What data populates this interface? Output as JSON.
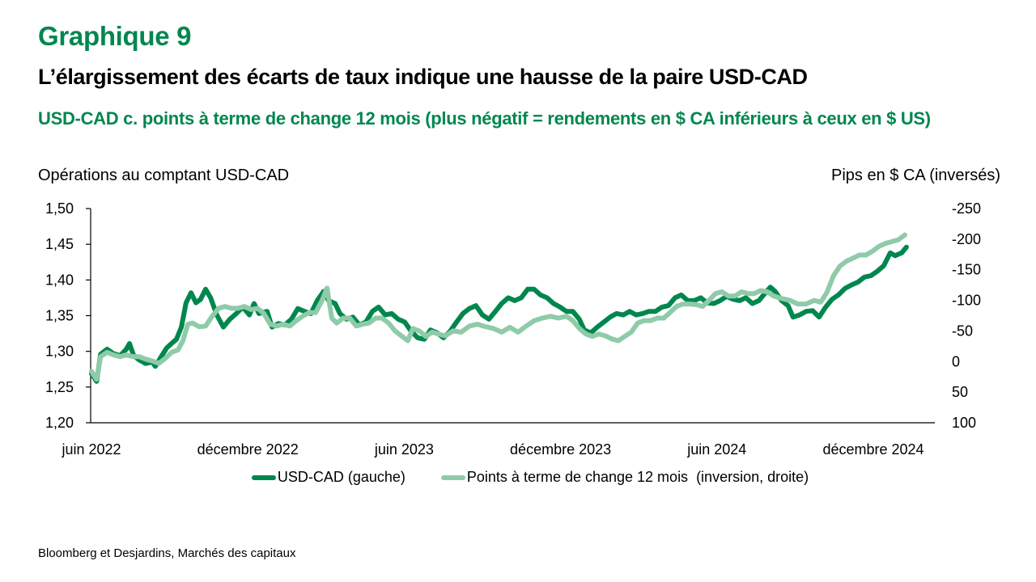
{
  "header": {
    "title": "Graphique 9",
    "subtitle": "L’élargissement des écarts de taux indique une hausse de la paire USD-CAD",
    "description": "USD-CAD c. points à terme de change 12 mois (plus négatif = rendements en $ CA inférieurs à ceux en $ US)"
  },
  "colors": {
    "accent": "#00874e",
    "series_dark": "#00874e",
    "series_light": "#8fcba9"
  },
  "source": "Bloomberg et Desjardins, Marchés des capitaux",
  "chart_data": {
    "type": "line",
    "title": "USD-CAD c. points à terme de change 12 mois",
    "xlabel": "",
    "ylabel_left": "Opérations au comptant USD-CAD",
    "ylabel_right": "Pips en $ CA (inversés)",
    "x_unit": "months since June 2022",
    "x_range": [
      0,
      31.3
    ],
    "x_ticks": [
      {
        "label": "juin 2022",
        "x": 0
      },
      {
        "label": "décembre 2022",
        "x": 6
      },
      {
        "label": "juin 2023",
        "x": 12
      },
      {
        "label": "décembre 2023",
        "x": 18
      },
      {
        "label": "juin 2024",
        "x": 24
      },
      {
        "label": "décembre 2024",
        "x": 30
      }
    ],
    "y_left": {
      "range": [
        1.2,
        1.5
      ],
      "ticks": [
        "1,20",
        "1,25",
        "1,30",
        "1,35",
        "1,40",
        "1,45",
        "1,50"
      ],
      "tick_values": [
        1.2,
        1.25,
        1.3,
        1.35,
        1.4,
        1.45,
        1.5
      ]
    },
    "y_right": {
      "range": [
        100,
        -250
      ],
      "inverted": true,
      "ticks": [
        "100",
        "50",
        "0",
        "-50",
        "-100",
        "-150",
        "-200",
        "-250"
      ],
      "tick_values": [
        100,
        50,
        0,
        -50,
        -100,
        -150,
        -200,
        -250
      ]
    },
    "grid": false,
    "legend_position": "bottom",
    "series": [
      {
        "name": "USD-CAD (gauche)",
        "axis": "left",
        "color": "#00874e",
        "points": [
          [
            0.0,
            1.269
          ],
          [
            0.2,
            1.258
          ],
          [
            0.35,
            1.296
          ],
          [
            0.6,
            1.303
          ],
          [
            0.84,
            1.297
          ],
          [
            1.1,
            1.294
          ],
          [
            1.34,
            1.303
          ],
          [
            1.46,
            1.311
          ],
          [
            1.62,
            1.294
          ],
          [
            1.83,
            1.288
          ],
          [
            2.08,
            1.283
          ],
          [
            2.33,
            1.285
          ],
          [
            2.45,
            1.279
          ],
          [
            2.7,
            1.294
          ],
          [
            2.89,
            1.305
          ],
          [
            3.07,
            1.311
          ],
          [
            3.26,
            1.317
          ],
          [
            3.45,
            1.334
          ],
          [
            3.63,
            1.368
          ],
          [
            3.82,
            1.382
          ],
          [
            4.01,
            1.368
          ],
          [
            4.19,
            1.373
          ],
          [
            4.38,
            1.387
          ],
          [
            4.57,
            1.375
          ],
          [
            4.81,
            1.351
          ],
          [
            5.06,
            1.334
          ],
          [
            5.31,
            1.345
          ],
          [
            5.56,
            1.353
          ],
          [
            5.81,
            1.362
          ],
          [
            6.06,
            1.351
          ],
          [
            6.24,
            1.367
          ],
          [
            6.43,
            1.353
          ],
          [
            6.74,
            1.356
          ],
          [
            6.93,
            1.334
          ],
          [
            7.17,
            1.339
          ],
          [
            7.42,
            1.337
          ],
          [
            7.67,
            1.345
          ],
          [
            7.92,
            1.36
          ],
          [
            8.17,
            1.356
          ],
          [
            8.42,
            1.353
          ],
          [
            8.66,
            1.371
          ],
          [
            8.91,
            1.384
          ],
          [
            9.1,
            1.371
          ],
          [
            9.35,
            1.367
          ],
          [
            9.53,
            1.353
          ],
          [
            9.78,
            1.345
          ],
          [
            10.03,
            1.348
          ],
          [
            10.28,
            1.337
          ],
          [
            10.53,
            1.341
          ],
          [
            10.78,
            1.356
          ],
          [
            11.02,
            1.362
          ],
          [
            11.27,
            1.351
          ],
          [
            11.52,
            1.353
          ],
          [
            11.77,
            1.345
          ],
          [
            12.02,
            1.341
          ],
          [
            12.27,
            1.328
          ],
          [
            12.52,
            1.319
          ],
          [
            12.77,
            1.317
          ],
          [
            13.01,
            1.33
          ],
          [
            13.26,
            1.326
          ],
          [
            13.51,
            1.319
          ],
          [
            13.76,
            1.328
          ],
          [
            14.01,
            1.341
          ],
          [
            14.25,
            1.353
          ],
          [
            14.5,
            1.36
          ],
          [
            14.75,
            1.364
          ],
          [
            15.0,
            1.351
          ],
          [
            15.25,
            1.345
          ],
          [
            15.5,
            1.356
          ],
          [
            15.74,
            1.367
          ],
          [
            15.99,
            1.375
          ],
          [
            16.24,
            1.371
          ],
          [
            16.49,
            1.375
          ],
          [
            16.74,
            1.387
          ],
          [
            16.98,
            1.387
          ],
          [
            17.23,
            1.379
          ],
          [
            17.48,
            1.375
          ],
          [
            17.73,
            1.367
          ],
          [
            17.98,
            1.362
          ],
          [
            18.22,
            1.356
          ],
          [
            18.47,
            1.356
          ],
          [
            18.72,
            1.345
          ],
          [
            18.91,
            1.33
          ],
          [
            19.16,
            1.326
          ],
          [
            19.41,
            1.334
          ],
          [
            19.66,
            1.341
          ],
          [
            19.9,
            1.348
          ],
          [
            20.15,
            1.353
          ],
          [
            20.4,
            1.351
          ],
          [
            20.65,
            1.356
          ],
          [
            20.9,
            1.351
          ],
          [
            21.15,
            1.353
          ],
          [
            21.39,
            1.356
          ],
          [
            21.64,
            1.356
          ],
          [
            21.89,
            1.362
          ],
          [
            22.14,
            1.364
          ],
          [
            22.39,
            1.375
          ],
          [
            22.63,
            1.379
          ],
          [
            22.88,
            1.371
          ],
          [
            23.13,
            1.371
          ],
          [
            23.38,
            1.375
          ],
          [
            23.63,
            1.368
          ],
          [
            23.88,
            1.367
          ],
          [
            24.12,
            1.371
          ],
          [
            24.37,
            1.377
          ],
          [
            24.62,
            1.373
          ],
          [
            24.87,
            1.371
          ],
          [
            25.11,
            1.375
          ],
          [
            25.36,
            1.367
          ],
          [
            25.61,
            1.371
          ],
          [
            25.86,
            1.382
          ],
          [
            26.05,
            1.39
          ],
          [
            26.23,
            1.384
          ],
          [
            26.48,
            1.371
          ],
          [
            26.73,
            1.364
          ],
          [
            26.92,
            1.348
          ],
          [
            27.17,
            1.351
          ],
          [
            27.42,
            1.356
          ],
          [
            27.67,
            1.357
          ],
          [
            27.92,
            1.348
          ],
          [
            28.17,
            1.362
          ],
          [
            28.42,
            1.373
          ],
          [
            28.66,
            1.379
          ],
          [
            28.91,
            1.388
          ],
          [
            29.16,
            1.393
          ],
          [
            29.41,
            1.397
          ],
          [
            29.66,
            1.404
          ],
          [
            29.91,
            1.406
          ],
          [
            30.15,
            1.412
          ],
          [
            30.4,
            1.42
          ],
          [
            30.65,
            1.438
          ],
          [
            30.84,
            1.434
          ],
          [
            31.09,
            1.438
          ],
          [
            31.27,
            1.446
          ]
        ]
      },
      {
        "name": "Points à terme de change 12 mois  (inversion, droite)",
        "axis": "right",
        "color": "#8fcba9",
        "points": [
          [
            0.0,
            16
          ],
          [
            0.2,
            29
          ],
          [
            0.35,
            -8
          ],
          [
            0.6,
            -15
          ],
          [
            0.84,
            -11
          ],
          [
            1.1,
            -8
          ],
          [
            1.34,
            -11
          ],
          [
            1.59,
            -8
          ],
          [
            1.83,
            -8
          ],
          [
            2.08,
            -4
          ],
          [
            2.33,
            -1
          ],
          [
            2.58,
            3
          ],
          [
            2.83,
            -5
          ],
          [
            3.07,
            -15
          ],
          [
            3.32,
            -19
          ],
          [
            3.51,
            -34
          ],
          [
            3.7,
            -61
          ],
          [
            3.88,
            -63
          ],
          [
            4.13,
            -57
          ],
          [
            4.38,
            -58
          ],
          [
            4.63,
            -74
          ],
          [
            4.88,
            -87
          ],
          [
            5.12,
            -90
          ],
          [
            5.37,
            -87
          ],
          [
            5.62,
            -87
          ],
          [
            5.87,
            -90
          ],
          [
            6.12,
            -85
          ],
          [
            6.37,
            -87
          ],
          [
            6.61,
            -79
          ],
          [
            6.86,
            -61
          ],
          [
            7.11,
            -58
          ],
          [
            7.36,
            -61
          ],
          [
            7.61,
            -58
          ],
          [
            7.86,
            -67
          ],
          [
            8.1,
            -74
          ],
          [
            8.35,
            -80
          ],
          [
            8.6,
            -80
          ],
          [
            8.85,
            -100
          ],
          [
            9.04,
            -120
          ],
          [
            9.22,
            -71
          ],
          [
            9.41,
            -63
          ],
          [
            9.66,
            -71
          ],
          [
            9.91,
            -71
          ],
          [
            10.16,
            -58
          ],
          [
            10.4,
            -61
          ],
          [
            10.65,
            -63
          ],
          [
            10.9,
            -71
          ],
          [
            11.15,
            -71
          ],
          [
            11.4,
            -63
          ],
          [
            11.65,
            -50
          ],
          [
            11.89,
            -42
          ],
          [
            12.14,
            -34
          ],
          [
            12.33,
            -54
          ],
          [
            12.58,
            -50
          ],
          [
            12.83,
            -41
          ],
          [
            13.07,
            -48
          ],
          [
            13.32,
            -45
          ],
          [
            13.57,
            -42
          ],
          [
            13.88,
            -50
          ],
          [
            14.19,
            -48
          ],
          [
            14.5,
            -58
          ],
          [
            14.81,
            -61
          ],
          [
            15.12,
            -57
          ],
          [
            15.43,
            -54
          ],
          [
            15.74,
            -48
          ],
          [
            16.06,
            -56
          ],
          [
            16.37,
            -48
          ],
          [
            16.68,
            -58
          ],
          [
            16.99,
            -67
          ],
          [
            17.3,
            -71
          ],
          [
            17.61,
            -74
          ],
          [
            17.92,
            -71
          ],
          [
            18.22,
            -74
          ],
          [
            18.47,
            -67
          ],
          [
            18.72,
            -54
          ],
          [
            18.97,
            -45
          ],
          [
            19.22,
            -41
          ],
          [
            19.47,
            -45
          ],
          [
            19.72,
            -42
          ],
          [
            19.97,
            -37
          ],
          [
            20.22,
            -34
          ],
          [
            20.46,
            -41
          ],
          [
            20.71,
            -48
          ],
          [
            20.96,
            -63
          ],
          [
            21.21,
            -67
          ],
          [
            21.46,
            -67
          ],
          [
            21.71,
            -71
          ],
          [
            21.96,
            -71
          ],
          [
            22.2,
            -80
          ],
          [
            22.45,
            -90
          ],
          [
            22.7,
            -94
          ],
          [
            22.95,
            -94
          ],
          [
            23.2,
            -93
          ],
          [
            23.45,
            -90
          ],
          [
            23.7,
            -100
          ],
          [
            23.94,
            -111
          ],
          [
            24.19,
            -114
          ],
          [
            24.44,
            -107
          ],
          [
            24.69,
            -107
          ],
          [
            24.94,
            -114
          ],
          [
            25.19,
            -111
          ],
          [
            25.43,
            -111
          ],
          [
            25.68,
            -116
          ],
          [
            25.93,
            -114
          ],
          [
            26.18,
            -107
          ],
          [
            26.49,
            -103
          ],
          [
            26.8,
            -100
          ],
          [
            27.11,
            -94
          ],
          [
            27.42,
            -94
          ],
          [
            27.73,
            -100
          ],
          [
            27.98,
            -97
          ],
          [
            28.22,
            -113
          ],
          [
            28.47,
            -140
          ],
          [
            28.72,
            -156
          ],
          [
            28.97,
            -164
          ],
          [
            29.22,
            -169
          ],
          [
            29.47,
            -174
          ],
          [
            29.72,
            -174
          ],
          [
            29.96,
            -180
          ],
          [
            30.21,
            -188
          ],
          [
            30.46,
            -193
          ],
          [
            30.71,
            -196
          ],
          [
            30.96,
            -199
          ],
          [
            31.21,
            -207
          ]
        ]
      }
    ]
  }
}
